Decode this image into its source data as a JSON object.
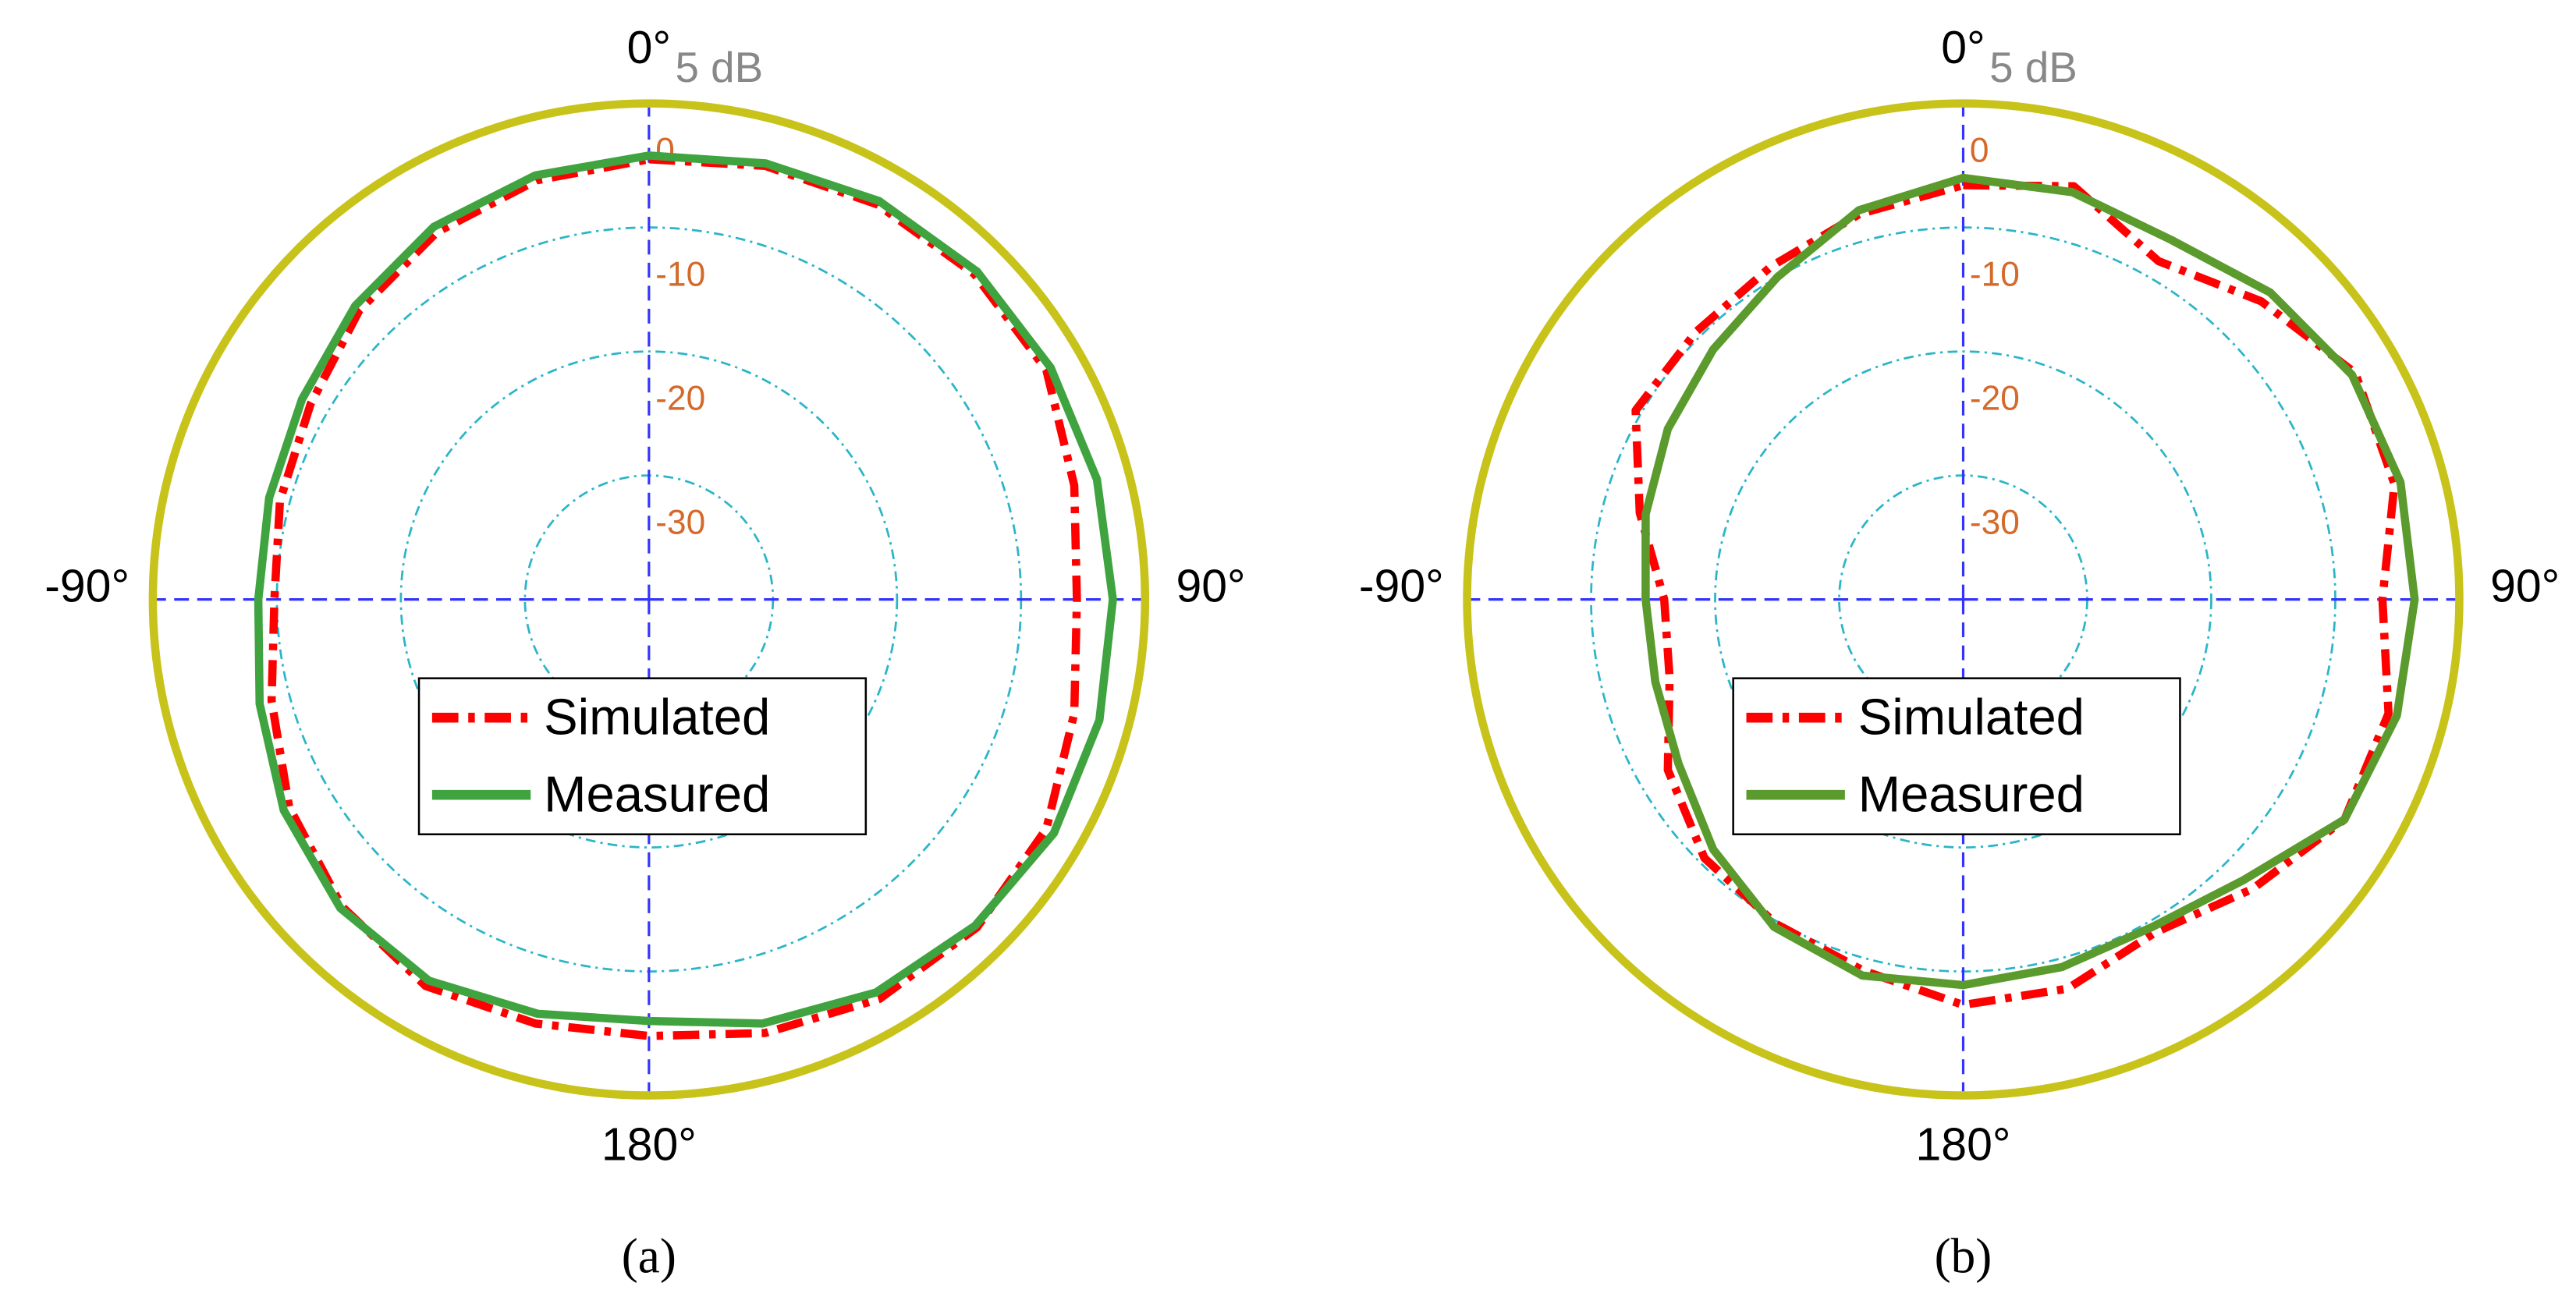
{
  "chart_data": [
    {
      "type": "polar",
      "caption": "(a)",
      "r_unit_label": "5 dB",
      "theta": [
        0,
        15,
        30,
        45,
        60,
        75,
        90,
        105,
        120,
        135,
        150,
        165,
        180,
        195,
        210,
        225,
        240,
        255,
        270,
        285,
        300,
        315,
        330,
        345
      ],
      "rlim": [
        -40,
        0
      ],
      "rticks": [
        0,
        -10,
        -20,
        -30
      ],
      "thetaticks": [
        {
          "value": 0,
          "label": "0°"
        },
        {
          "value": 90,
          "label": "90°"
        },
        {
          "value": 180,
          "label": "180°"
        },
        {
          "value": -90,
          "label": "-90°"
        }
      ],
      "legend": "center",
      "series": [
        {
          "name": "Simulated",
          "color": "#ff0000",
          "dashed": true,
          "values": [
            -4.5,
            -3.8,
            -3.2,
            -2.9,
            -3.0,
            -4.5,
            -5.5,
            -4.5,
            -3.0,
            -2.6,
            -2.8,
            -3.8,
            -4.8,
            -4.6,
            -4.0,
            -5.0,
            -6.5,
            -8.5,
            -9.8,
            -9.2,
            -8.5,
            -7.0,
            -5.8,
            -5.0
          ]
        },
        {
          "name": "Measured",
          "color": "#3fa33f",
          "dashed": false,
          "values": [
            -4.2,
            -3.6,
            -2.9,
            -2.6,
            -2.6,
            -2.6,
            -2.6,
            -2.4,
            -2.3,
            -2.8,
            -3.4,
            -4.6,
            -6.0,
            -5.4,
            -4.5,
            -4.8,
            -6.0,
            -7.5,
            -8.5,
            -8.3,
            -7.7,
            -6.5,
            -5.3,
            -4.6
          ]
        }
      ]
    },
    {
      "type": "polar",
      "caption": "(b)",
      "r_unit_label": "5 dB",
      "theta": [
        0,
        15,
        30,
        45,
        60,
        75,
        90,
        105,
        120,
        135,
        150,
        165,
        180,
        195,
        210,
        225,
        240,
        255,
        270,
        285,
        300,
        315,
        330,
        345
      ],
      "rlim": [
        -40,
        0
      ],
      "rticks": [
        0,
        -10,
        -20,
        -30
      ],
      "thetaticks": [
        {
          "value": 0,
          "label": "0°"
        },
        {
          "value": 90,
          "label": "90°"
        },
        {
          "value": 180,
          "label": "180°"
        },
        {
          "value": -90,
          "label": "-90°"
        }
      ],
      "legend": "center",
      "series": [
        {
          "name": "Simulated",
          "color": "#ff0000",
          "dashed": true,
          "values": [
            -6.6,
            -5.5,
            -8.5,
            -6.0,
            -3.5,
            -4.0,
            -6.2,
            -4.5,
            -4.5,
            -7.0,
            -9.0,
            -7.5,
            -7.3,
            -9.0,
            -9.8,
            -10.5,
            -12.5,
            -15.5,
            -15.9,
            -13.0,
            -9.5,
            -9.5,
            -9.0,
            -7.8
          ]
        },
        {
          "name": "Measured",
          "color": "#5b9a2c",
          "dashed": false,
          "values": [
            -6.0,
            -6.0,
            -6.5,
            -5.0,
            -3.8,
            -3.5,
            -3.6,
            -3.8,
            -4.5,
            -8.0,
            -9.5,
            -9.3,
            -8.9,
            -8.6,
            -9.5,
            -11.5,
            -13.5,
            -14.3,
            -14.4,
            -13.5,
            -12.5,
            -11.5,
            -10.0,
            -7.5
          ]
        }
      ]
    }
  ]
}
